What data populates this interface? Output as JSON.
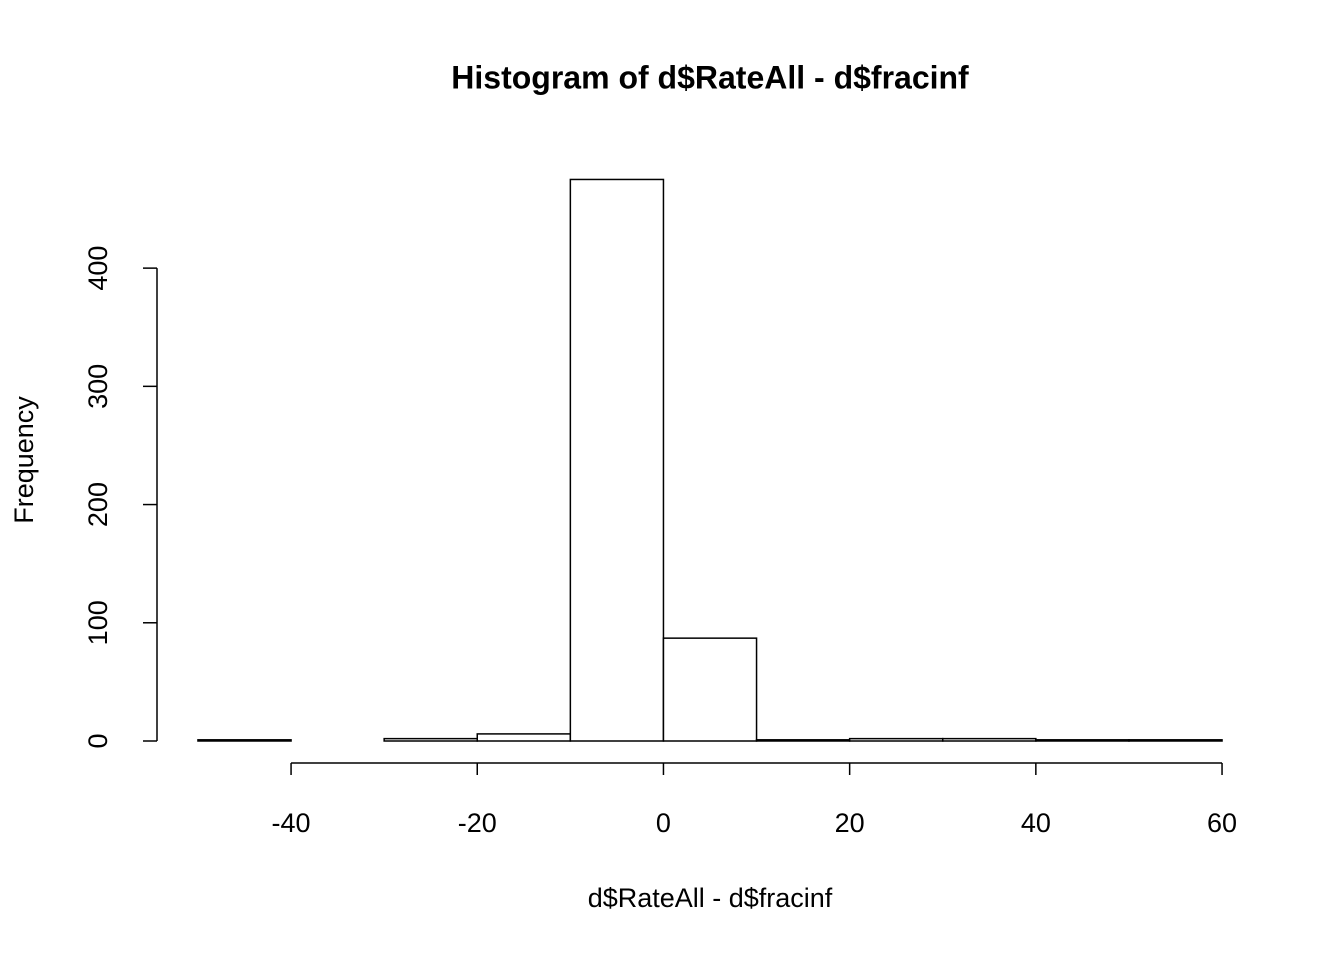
{
  "chart_data": {
    "type": "histogram",
    "title": "Histogram of d$RateAll - d$fracinf",
    "x_label": "d$RateAll - d$fracinf",
    "y_label": "Frequency",
    "bins": [
      -50,
      -40,
      -30,
      -20,
      -10,
      0,
      10,
      20,
      30,
      40,
      50,
      60
    ],
    "counts": [
      1,
      0,
      2,
      6,
      475,
      87,
      1,
      2,
      2,
      1,
      1
    ],
    "xlim": [
      -54.4,
      64.4
    ],
    "ylim": [
      0,
      494
    ],
    "xticks": [
      -40,
      -20,
      0,
      20,
      40,
      60
    ],
    "yticks": [
      0,
      100,
      200,
      300,
      400
    ],
    "color": "#ffffff"
  }
}
